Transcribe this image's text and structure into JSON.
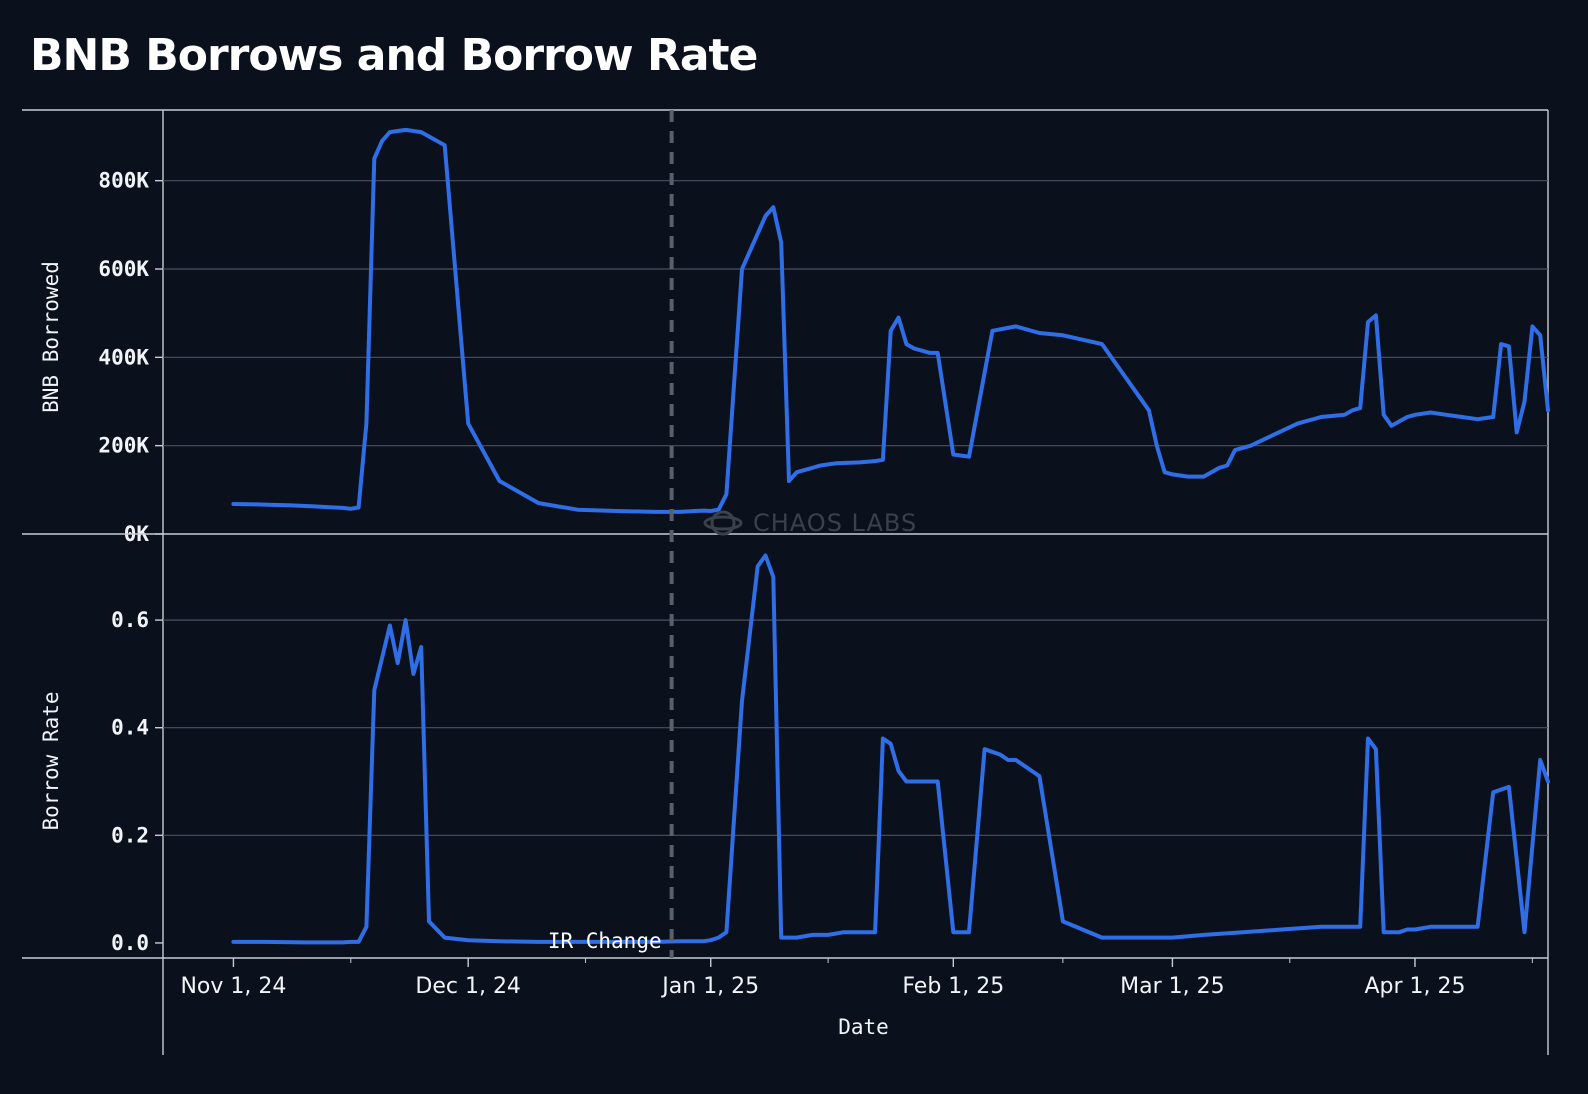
{
  "title": "BNB Borrows and Borrow Rate",
  "watermark": "CHAOS LABS",
  "colors": {
    "background": "#0b111c",
    "line": "#2f6ee6",
    "grid": "#4a5160",
    "axis": "#c8ccd4",
    "marker": "#5a606b"
  },
  "chart_data": [
    {
      "type": "line",
      "ylabel": "BNB Borrowed",
      "yticks": [
        0,
        200000,
        400000,
        600000,
        800000
      ],
      "ytick_labels": [
        "0K",
        "200K",
        "400K",
        "600K",
        "800K"
      ],
      "ylim": [
        0,
        960000
      ],
      "xlim": [
        "2024-10-23",
        "2025-04-18"
      ],
      "grid": true,
      "series": [
        {
          "x": [
            "2024-11-01",
            "2024-11-04",
            "2024-11-06",
            "2024-11-08",
            "2024-11-11",
            "2024-11-13",
            "2024-11-14",
            "2024-11-15",
            "2024-11-16",
            "2024-11-17",
            "2024-11-18",
            "2024-11-19",
            "2024-11-20",
            "2024-11-21",
            "2024-11-23",
            "2024-11-25",
            "2024-11-28",
            "2024-12-01",
            "2024-12-05",
            "2024-12-10",
            "2024-12-15",
            "2024-12-20",
            "2024-12-25",
            "2024-12-28",
            "2024-12-30",
            "2024-12-31",
            "2025-01-01",
            "2025-01-02",
            "2025-01-03",
            "2025-01-05",
            "2025-01-08",
            "2025-01-09",
            "2025-01-10",
            "2025-01-11",
            "2025-01-12",
            "2025-01-14",
            "2025-01-15",
            "2025-01-17",
            "2025-01-20",
            "2025-01-22",
            "2025-01-23",
            "2025-01-24",
            "2025-01-25",
            "2025-01-26",
            "2025-01-27",
            "2025-01-28",
            "2025-01-29",
            "2025-01-30",
            "2025-02-01",
            "2025-02-03",
            "2025-02-06",
            "2025-02-09",
            "2025-02-12",
            "2025-02-15",
            "2025-02-20",
            "2025-02-26",
            "2025-02-27",
            "2025-02-28",
            "2025-03-01",
            "2025-03-03",
            "2025-03-05",
            "2025-03-07",
            "2025-03-08",
            "2025-03-09",
            "2025-03-11",
            "2025-03-14",
            "2025-03-17",
            "2025-03-20",
            "2025-03-23",
            "2025-03-24",
            "2025-03-25",
            "2025-03-26",
            "2025-03-27",
            "2025-03-28",
            "2025-03-29",
            "2025-03-30",
            "2025-03-31",
            "2025-04-01",
            "2025-04-03",
            "2025-04-05",
            "2025-04-07",
            "2025-04-09",
            "2025-04-11",
            "2025-04-12",
            "2025-04-13",
            "2025-04-14",
            "2025-04-15",
            "2025-04-16",
            "2025-04-17",
            "2025-04-18"
          ],
          "y": [
            68000,
            67000,
            66000,
            65000,
            63000,
            61000,
            60000,
            59000,
            57000,
            60000,
            250000,
            850000,
            890000,
            910000,
            915000,
            910000,
            880000,
            250000,
            120000,
            70000,
            55000,
            52000,
            50000,
            50000,
            52000,
            53000,
            52000,
            55000,
            90000,
            600000,
            720000,
            740000,
            660000,
            120000,
            140000,
            150000,
            155000,
            160000,
            162000,
            165000,
            168000,
            460000,
            490000,
            430000,
            420000,
            415000,
            410000,
            410000,
            180000,
            175000,
            460000,
            470000,
            455000,
            450000,
            430000,
            280000,
            200000,
            140000,
            135000,
            130000,
            130000,
            150000,
            155000,
            190000,
            200000,
            225000,
            250000,
            265000,
            270000,
            280000,
            285000,
            480000,
            495000,
            270000,
            245000,
            255000,
            265000,
            270000,
            275000,
            270000,
            265000,
            260000,
            265000,
            430000,
            425000,
            230000,
            300000,
            470000,
            450000,
            280000
          ]
        }
      ]
    },
    {
      "type": "line",
      "ylabel": "Borrow Rate",
      "xlabel": "Date",
      "yticks": [
        0.0,
        0.2,
        0.4,
        0.6
      ],
      "ytick_labels": [
        "0.0",
        "0.2",
        "0.4",
        "0.6"
      ],
      "ylim": [
        -0.028,
        0.76
      ],
      "xlim": [
        "2024-10-23",
        "2025-04-18"
      ],
      "x_ticks": [
        "2024-11-01",
        "2024-12-01",
        "2025-01-01",
        "2025-02-01",
        "2025-03-01",
        "2025-04-01"
      ],
      "x_tick_labels": [
        "Nov 1, 24",
        "Dec 1, 24",
        "Jan 1, 25",
        "Feb 1, 25",
        "Mar 1, 25",
        "Apr 1, 25"
      ],
      "grid": true,
      "series": [
        {
          "x": [
            "2024-11-01",
            "2024-11-05",
            "2024-11-10",
            "2024-11-13",
            "2024-11-14",
            "2024-11-15",
            "2024-11-16",
            "2024-11-17",
            "2024-11-18",
            "2024-11-19",
            "2024-11-20",
            "2024-11-21",
            "2024-11-22",
            "2024-11-23",
            "2024-11-24",
            "2024-11-25",
            "2024-11-26",
            "2024-11-28",
            "2024-12-01",
            "2024-12-05",
            "2024-12-10",
            "2024-12-15",
            "2024-12-20",
            "2024-12-25",
            "2024-12-28",
            "2024-12-30",
            "2024-12-31",
            "2025-01-01",
            "2025-01-02",
            "2025-01-03",
            "2025-01-05",
            "2025-01-07",
            "2025-01-08",
            "2025-01-09",
            "2025-01-10",
            "2025-01-11",
            "2025-01-12",
            "2025-01-14",
            "2025-01-16",
            "2025-01-18",
            "2025-01-20",
            "2025-01-22",
            "2025-01-23",
            "2025-01-24",
            "2025-01-25",
            "2025-01-26",
            "2025-01-27",
            "2025-01-28",
            "2025-01-29",
            "2025-01-30",
            "2025-02-01",
            "2025-02-03",
            "2025-02-05",
            "2025-02-07",
            "2025-02-08",
            "2025-02-09",
            "2025-02-12",
            "2025-02-15",
            "2025-02-20",
            "2025-02-25",
            "2025-02-28",
            "2025-03-01",
            "2025-03-05",
            "2025-03-10",
            "2025-03-15",
            "2025-03-20",
            "2025-03-25",
            "2025-03-26",
            "2025-03-27",
            "2025-03-28",
            "2025-03-29",
            "2025-03-30",
            "2025-03-31",
            "2025-04-01",
            "2025-04-03",
            "2025-04-05",
            "2025-04-07",
            "2025-04-09",
            "2025-04-11",
            "2025-04-13",
            "2025-04-15",
            "2025-04-17",
            "2025-04-18"
          ],
          "y": [
            0.002,
            0.002,
            0.001,
            0.001,
            0.001,
            0.001,
            0.002,
            0.002,
            0.03,
            0.47,
            0.53,
            0.59,
            0.52,
            0.6,
            0.5,
            0.55,
            0.04,
            0.01,
            0.005,
            0.003,
            0.002,
            0.002,
            0.002,
            0.002,
            0.003,
            0.003,
            0.003,
            0.005,
            0.01,
            0.02,
            0.45,
            0.7,
            0.72,
            0.68,
            0.01,
            0.01,
            0.01,
            0.015,
            0.015,
            0.02,
            0.02,
            0.02,
            0.38,
            0.37,
            0.32,
            0.3,
            0.3,
            0.3,
            0.3,
            0.3,
            0.02,
            0.02,
            0.36,
            0.35,
            0.34,
            0.34,
            0.31,
            0.04,
            0.01,
            0.01,
            0.01,
            0.01,
            0.015,
            0.02,
            0.025,
            0.03,
            0.03,
            0.38,
            0.36,
            0.02,
            0.02,
            0.02,
            0.025,
            0.025,
            0.03,
            0.03,
            0.03,
            0.03,
            0.28,
            0.29,
            0.02,
            0.34,
            0.3
          ]
        }
      ]
    }
  ],
  "annotation": {
    "label": "IR Change",
    "date": "2024-12-27"
  }
}
